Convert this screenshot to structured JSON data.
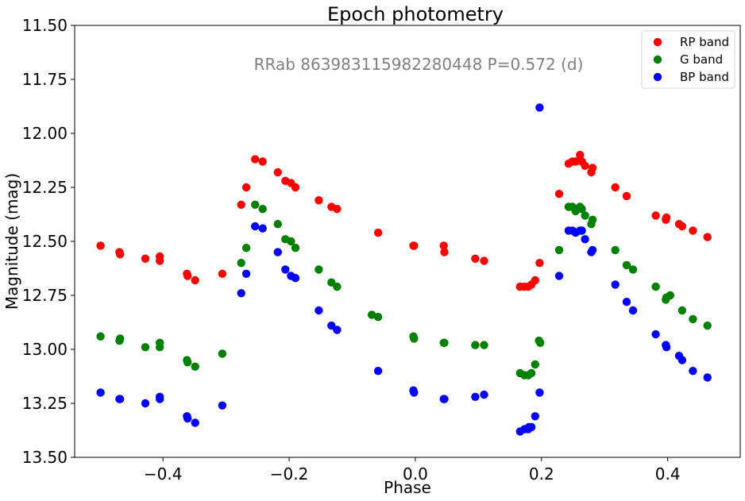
{
  "chart_data": {
    "type": "scatter",
    "title": "Epoch photometry",
    "annotation": "RRab 863983115982280448 P=0.572 (d)",
    "xlabel": "Phase",
    "ylabel": "Magnitude (mag)",
    "xlim": [
      -0.54,
      0.515
    ],
    "ylim": [
      11.5,
      13.5
    ],
    "y_inverted": true,
    "grid": false,
    "legend_position": "top-right",
    "xticks": [
      "−0.4",
      "−0.2",
      "0.0",
      "0.2",
      "0.4"
    ],
    "xtick_values": [
      -0.4,
      -0.2,
      0.0,
      0.2,
      0.4
    ],
    "yticks": [
      "11.50",
      "11.75",
      "12.00",
      "12.25",
      "12.50",
      "12.75",
      "13.00",
      "13.25",
      "13.50"
    ],
    "ytick_values": [
      11.5,
      11.75,
      12.0,
      12.25,
      12.5,
      12.75,
      13.0,
      13.25,
      13.5
    ],
    "series": [
      {
        "name": "RP band",
        "color": "#ff0000",
        "points": [
          [
            -0.499,
            12.52
          ],
          [
            -0.469,
            12.55
          ],
          [
            -0.468,
            12.56
          ],
          [
            -0.428,
            12.58
          ],
          [
            -0.405,
            12.57
          ],
          [
            -0.405,
            12.59
          ],
          [
            -0.362,
            12.65
          ],
          [
            -0.361,
            12.66
          ],
          [
            -0.349,
            12.68
          ],
          [
            -0.306,
            12.65
          ],
          [
            -0.276,
            12.33
          ],
          [
            -0.268,
            12.25
          ],
          [
            -0.254,
            12.12
          ],
          [
            -0.242,
            12.13
          ],
          [
            -0.218,
            12.18
          ],
          [
            -0.206,
            12.22
          ],
          [
            -0.197,
            12.23
          ],
          [
            -0.19,
            12.25
          ],
          [
            -0.153,
            12.31
          ],
          [
            -0.133,
            12.34
          ],
          [
            -0.124,
            12.35
          ],
          [
            -0.059,
            12.46
          ],
          [
            -0.003,
            12.52
          ],
          [
            -0.002,
            12.52
          ],
          [
            0.045,
            12.52
          ],
          [
            0.046,
            12.55
          ],
          [
            0.095,
            12.58
          ],
          [
            0.109,
            12.59
          ],
          [
            0.166,
            12.71
          ],
          [
            0.173,
            12.71
          ],
          [
            0.179,
            12.71
          ],
          [
            0.184,
            12.7
          ],
          [
            0.19,
            12.68
          ],
          [
            0.197,
            12.6
          ],
          [
            0.228,
            12.28
          ],
          [
            0.243,
            12.14
          ],
          [
            0.249,
            12.13
          ],
          [
            0.254,
            12.13
          ],
          [
            0.261,
            12.1
          ],
          [
            0.264,
            12.13
          ],
          [
            0.269,
            12.15
          ],
          [
            0.279,
            12.18
          ],
          [
            0.281,
            12.16
          ],
          [
            0.317,
            12.25
          ],
          [
            0.335,
            12.29
          ],
          [
            0.381,
            12.38
          ],
          [
            0.397,
            12.4
          ],
          [
            0.398,
            12.39
          ],
          [
            0.418,
            12.42
          ],
          [
            0.423,
            12.43
          ],
          [
            0.44,
            12.45
          ],
          [
            0.463,
            12.48
          ]
        ]
      },
      {
        "name": "G band",
        "color": "#008000",
        "points": [
          [
            -0.499,
            12.94
          ],
          [
            -0.469,
            12.96
          ],
          [
            -0.468,
            12.95
          ],
          [
            -0.428,
            12.99
          ],
          [
            -0.405,
            12.97
          ],
          [
            -0.405,
            12.99
          ],
          [
            -0.362,
            13.05
          ],
          [
            -0.361,
            13.06
          ],
          [
            -0.349,
            13.08
          ],
          [
            -0.306,
            13.02
          ],
          [
            -0.276,
            12.6
          ],
          [
            -0.268,
            12.53
          ],
          [
            -0.254,
            12.33
          ],
          [
            -0.242,
            12.35
          ],
          [
            -0.218,
            12.42
          ],
          [
            -0.206,
            12.49
          ],
          [
            -0.197,
            12.5
          ],
          [
            -0.19,
            12.53
          ],
          [
            -0.153,
            12.63
          ],
          [
            -0.133,
            12.69
          ],
          [
            -0.124,
            12.71
          ],
          [
            -0.069,
            12.84
          ],
          [
            -0.059,
            12.85
          ],
          [
            -0.003,
            12.94
          ],
          [
            -0.002,
            12.95
          ],
          [
            0.045,
            12.97
          ],
          [
            0.046,
            12.97
          ],
          [
            0.095,
            12.98
          ],
          [
            0.109,
            12.98
          ],
          [
            0.166,
            13.11
          ],
          [
            0.173,
            13.12
          ],
          [
            0.179,
            13.12
          ],
          [
            0.184,
            13.11
          ],
          [
            0.19,
            13.07
          ],
          [
            0.196,
            12.96
          ],
          [
            0.198,
            12.97
          ],
          [
            0.228,
            12.54
          ],
          [
            0.243,
            12.34
          ],
          [
            0.249,
            12.34
          ],
          [
            0.254,
            12.36
          ],
          [
            0.261,
            12.34
          ],
          [
            0.264,
            12.35
          ],
          [
            0.269,
            12.38
          ],
          [
            0.279,
            12.42
          ],
          [
            0.281,
            12.4
          ],
          [
            0.317,
            12.54
          ],
          [
            0.335,
            12.61
          ],
          [
            0.345,
            12.63
          ],
          [
            0.381,
            12.71
          ],
          [
            0.397,
            12.77
          ],
          [
            0.398,
            12.76
          ],
          [
            0.404,
            12.75
          ],
          [
            0.423,
            12.82
          ],
          [
            0.44,
            12.86
          ],
          [
            0.463,
            12.89
          ]
        ]
      },
      {
        "name": "BP band",
        "color": "#0000ff",
        "points": [
          [
            -0.499,
            13.2
          ],
          [
            -0.469,
            13.23
          ],
          [
            -0.468,
            13.23
          ],
          [
            -0.428,
            13.25
          ],
          [
            -0.405,
            13.22
          ],
          [
            -0.405,
            13.23
          ],
          [
            -0.362,
            13.31
          ],
          [
            -0.361,
            13.32
          ],
          [
            -0.349,
            13.34
          ],
          [
            -0.306,
            13.26
          ],
          [
            -0.276,
            12.74
          ],
          [
            -0.268,
            12.65
          ],
          [
            -0.254,
            12.43
          ],
          [
            -0.242,
            12.44
          ],
          [
            -0.218,
            12.55
          ],
          [
            -0.206,
            12.63
          ],
          [
            -0.197,
            12.66
          ],
          [
            -0.19,
            12.67
          ],
          [
            -0.153,
            12.82
          ],
          [
            -0.133,
            12.89
          ],
          [
            -0.124,
            12.91
          ],
          [
            -0.059,
            13.1
          ],
          [
            -0.003,
            13.19
          ],
          [
            -0.002,
            13.2
          ],
          [
            0.045,
            13.23
          ],
          [
            0.046,
            13.23
          ],
          [
            0.095,
            13.22
          ],
          [
            0.109,
            13.21
          ],
          [
            0.166,
            13.38
          ],
          [
            0.173,
            13.37
          ],
          [
            0.179,
            13.37
          ],
          [
            0.18,
            13.36
          ],
          [
            0.184,
            13.36
          ],
          [
            0.19,
            13.31
          ],
          [
            0.197,
            13.2
          ],
          [
            0.197,
            11.88
          ],
          [
            0.228,
            12.66
          ],
          [
            0.243,
            12.45
          ],
          [
            0.249,
            12.45
          ],
          [
            0.254,
            12.46
          ],
          [
            0.261,
            12.45
          ],
          [
            0.264,
            12.45
          ],
          [
            0.269,
            12.49
          ],
          [
            0.279,
            12.55
          ],
          [
            0.281,
            12.54
          ],
          [
            0.317,
            12.7
          ],
          [
            0.335,
            12.78
          ],
          [
            0.345,
            12.82
          ],
          [
            0.381,
            12.93
          ],
          [
            0.397,
            12.98
          ],
          [
            0.398,
            12.99
          ],
          [
            0.418,
            13.03
          ],
          [
            0.423,
            13.05
          ],
          [
            0.44,
            13.1
          ],
          [
            0.463,
            13.13
          ]
        ]
      }
    ]
  }
}
